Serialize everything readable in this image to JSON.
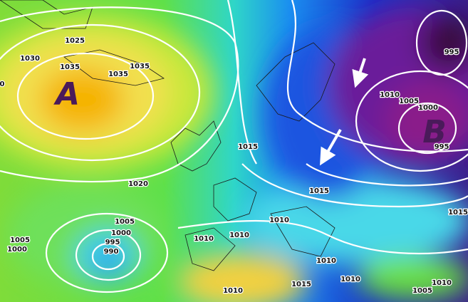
{
  "pressure_centers": [
    {
      "label": "A"
    },
    {
      "label": "B"
    }
  ],
  "isobar_labels": [
    "1025",
    "1030",
    "1035",
    "1035",
    "1035",
    "0",
    "1015",
    "1020",
    "1010",
    "1005",
    "1000",
    "995",
    "995",
    "1015",
    "1015",
    "1010",
    "1010",
    "1010",
    "1005",
    "1000",
    "995",
    "990",
    "1005",
    "1000",
    "1010",
    "1010",
    "1015",
    "1010",
    "1010",
    "1005"
  ]
}
